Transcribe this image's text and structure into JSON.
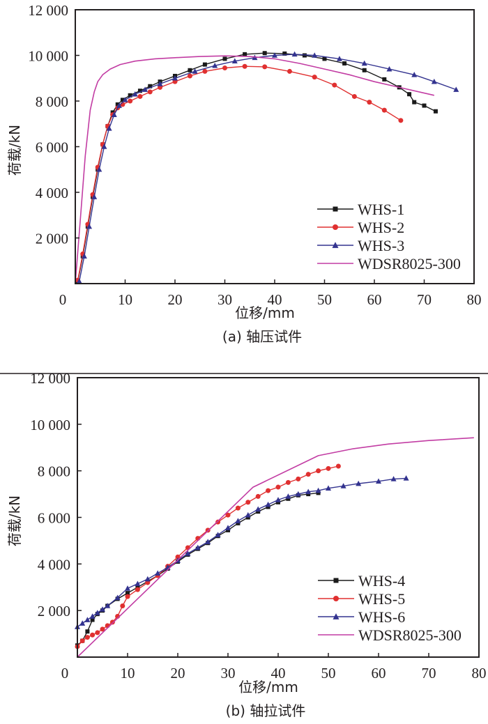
{
  "chart_data": [
    {
      "type": "line",
      "panel": "a",
      "caption": "(a) 轴压试件",
      "title": "",
      "xlabel": "位移/mm",
      "ylabel": "荷载/kN",
      "xlim": [
        0,
        80
      ],
      "ylim": [
        0,
        12000
      ],
      "xticks": [
        0,
        10,
        20,
        30,
        40,
        50,
        60,
        70,
        80
      ],
      "yticks": [
        2000,
        4000,
        6000,
        8000,
        10000,
        12000
      ],
      "xtick_labels": [
        "0",
        "10",
        "20",
        "30",
        "40",
        "50",
        "60",
        "70",
        "80"
      ],
      "ytick_labels": [
        "2 000",
        "4 000",
        "6 000",
        "8 000",
        "10 000",
        "12 000"
      ],
      "grid": false,
      "legend_position": "bottom-right",
      "series": [
        {
          "name": "WHS-1",
          "color": "#1a1a1a",
          "marker": "square",
          "x": [
            0.5,
            1.5,
            2.5,
            3.5,
            4.5,
            5.5,
            6.5,
            7.5,
            8.5,
            9.5,
            11,
            13,
            15,
            17,
            20,
            23,
            26,
            30,
            34,
            38,
            42,
            46,
            50,
            54,
            58,
            62,
            65,
            67,
            68,
            70,
            72.3
          ],
          "y": [
            100,
            1200,
            2500,
            3800,
            5000,
            6100,
            6900,
            7500,
            7850,
            8050,
            8250,
            8450,
            8650,
            8850,
            9100,
            9350,
            9600,
            9850,
            10050,
            10100,
            10080,
            10000,
            9850,
            9650,
            9350,
            8950,
            8600,
            8300,
            7950,
            7800,
            7550
          ]
        },
        {
          "name": "WHS-2",
          "color": "#e03030",
          "marker": "circle",
          "x": [
            0.5,
            1.5,
            2.5,
            3.5,
            4.5,
            5.5,
            6.5,
            7.5,
            8.5,
            9.5,
            11,
            13,
            15,
            17,
            20,
            23,
            26,
            30,
            34,
            38,
            43,
            48,
            52,
            56,
            59,
            62,
            65.3
          ],
          "y": [
            150,
            1300,
            2600,
            3900,
            5100,
            6100,
            6900,
            7400,
            7700,
            7850,
            8000,
            8200,
            8400,
            8600,
            8850,
            9100,
            9300,
            9450,
            9520,
            9500,
            9300,
            9050,
            8700,
            8200,
            7950,
            7600,
            7150
          ]
        },
        {
          "name": "WHS-3",
          "color": "#33338f",
          "marker": "triangle",
          "x": [
            0.8,
            1.8,
            2.8,
            3.8,
            4.8,
            5.8,
            6.8,
            7.8,
            8.8,
            10,
            12,
            14,
            17,
            20,
            24,
            28,
            32,
            36,
            40,
            44,
            48,
            53,
            58,
            63,
            68,
            72,
            76.4
          ],
          "y": [
            100,
            1200,
            2500,
            3800,
            5000,
            6000,
            6800,
            7400,
            7800,
            8050,
            8300,
            8500,
            8750,
            9000,
            9300,
            9550,
            9750,
            9900,
            10000,
            10050,
            10000,
            9850,
            9650,
            9400,
            9150,
            8850,
            8500
          ]
        },
        {
          "name": "WDSR8025-300",
          "color": "#c23ca3",
          "marker": "none",
          "x": [
            0,
            1,
            2,
            3,
            3.8,
            4.5,
            5.5,
            7,
            9,
            12,
            16,
            20,
            25,
            30,
            35,
            40,
            45,
            50,
            55,
            60,
            65,
            72
          ],
          "y": [
            0,
            2800,
            5600,
            7600,
            8400,
            8850,
            9150,
            9400,
            9600,
            9750,
            9850,
            9900,
            9950,
            9980,
            9950,
            9850,
            9650,
            9400,
            9150,
            8850,
            8600,
            8250
          ]
        }
      ]
    },
    {
      "type": "line",
      "panel": "b",
      "caption": "(b) 轴拉试件",
      "title": "",
      "xlabel": "位移/mm",
      "ylabel": "荷载/kN",
      "xlim": [
        0,
        80
      ],
      "ylim": [
        0,
        12000
      ],
      "xticks": [
        0,
        10,
        20,
        30,
        40,
        50,
        60,
        70,
        80
      ],
      "yticks": [
        2000,
        4000,
        6000,
        8000,
        10000,
        12000
      ],
      "xtick_labels": [
        "0",
        "10",
        "20",
        "30",
        "40",
        "50",
        "60",
        "70",
        "80"
      ],
      "ytick_labels": [
        "2 000",
        "4 000",
        "6 000",
        "8 000",
        "10 000",
        "12 000"
      ],
      "grid": false,
      "legend_position": "bottom-right",
      "series": [
        {
          "name": "WHS-4",
          "color": "#1a1a1a",
          "marker": "square",
          "x": [
            0,
            1,
            2,
            3,
            4,
            5,
            6,
            8,
            10,
            12,
            14,
            16,
            18,
            20,
            22,
            24,
            26,
            28,
            30,
            32,
            34,
            36,
            38,
            40,
            42,
            44,
            46,
            48
          ],
          "y": [
            500,
            700,
            1100,
            1600,
            1850,
            2000,
            2200,
            2500,
            2750,
            3000,
            3250,
            3500,
            3800,
            4100,
            4400,
            4650,
            4900,
            5200,
            5450,
            5750,
            6000,
            6250,
            6450,
            6650,
            6800,
            6950,
            7000,
            7050
          ]
        },
        {
          "name": "WHS-5",
          "color": "#e03030",
          "marker": "circle",
          "x": [
            0,
            1,
            2,
            3,
            4,
            5,
            6,
            7,
            8,
            9,
            10,
            12,
            14,
            16,
            18,
            20,
            22,
            24,
            26,
            28,
            30,
            32,
            34,
            36,
            38,
            40,
            42,
            44,
            46,
            48,
            50,
            52
          ],
          "y": [
            450,
            700,
            850,
            950,
            1050,
            1200,
            1350,
            1500,
            1750,
            2200,
            2600,
            2900,
            3200,
            3500,
            3900,
            4300,
            4700,
            5100,
            5450,
            5800,
            6100,
            6400,
            6650,
            6900,
            7150,
            7300,
            7500,
            7650,
            7850,
            8000,
            8100,
            8200
          ]
        },
        {
          "name": "WHS-6",
          "color": "#33338f",
          "marker": "triangle",
          "x": [
            0,
            1,
            2,
            3,
            4,
            5,
            6,
            8,
            10,
            12,
            14,
            16,
            18,
            20,
            22,
            24,
            26,
            28,
            30,
            32,
            34,
            36,
            38,
            40,
            42,
            44,
            46,
            48,
            50,
            53,
            56,
            60,
            63,
            65.5
          ],
          "y": [
            1300,
            1450,
            1600,
            1750,
            1900,
            2050,
            2200,
            2550,
            2950,
            3150,
            3350,
            3600,
            3850,
            4150,
            4450,
            4700,
            4950,
            5250,
            5550,
            5850,
            6100,
            6350,
            6550,
            6750,
            6900,
            7000,
            7100,
            7150,
            7250,
            7350,
            7450,
            7550,
            7650,
            7680
          ]
        },
        {
          "name": "WDSR8025-300",
          "color": "#c23ca3",
          "marker": "none",
          "x": [
            0,
            35,
            48,
            55,
            62,
            70,
            79
          ],
          "y": [
            0,
            7300,
            8650,
            8950,
            9150,
            9300,
            9420
          ]
        }
      ]
    }
  ]
}
